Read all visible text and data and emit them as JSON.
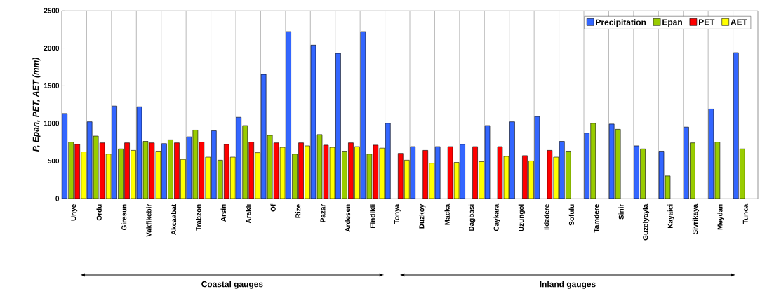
{
  "chart_data": {
    "type": "bar",
    "ylabel": "P, Epan, PET, AET (mm)",
    "categories": [
      "Unye",
      "Ordu",
      "Giresun",
      "Vakfikebir",
      "Akcaabat",
      "Trabzon",
      "Arsin",
      "Arakli",
      "Of",
      "Rize",
      "Pazar",
      "Ardesen",
      "Findikli",
      "Tonya",
      "Duzkoy",
      "Macka",
      "Dagbasi",
      "Caykara",
      "Uzungol",
      "Ikizdere",
      "Sofulu",
      "Tamdere",
      "Sinir",
      "Guzelyayla",
      "Kayaici",
      "Sivrikaya",
      "Meydan",
      "Tunca"
    ],
    "series": [
      {
        "name": "Precipitation",
        "color": "#3366ff",
        "values": [
          1130,
          1020,
          1230,
          1220,
          730,
          820,
          900,
          1080,
          1650,
          2220,
          2040,
          1930,
          2220,
          1000,
          690,
          690,
          720,
          970,
          1020,
          1090,
          760,
          870,
          990,
          700,
          630,
          950,
          1190,
          1940
        ]
      },
      {
        "name": "Epan",
        "color": "#99cc00",
        "values": [
          750,
          830,
          660,
          760,
          780,
          910,
          510,
          970,
          840,
          590,
          850,
          630,
          590,
          null,
          null,
          null,
          null,
          null,
          null,
          null,
          630,
          1000,
          920,
          660,
          300,
          740,
          750,
          660
        ]
      },
      {
        "name": "PET",
        "color": "#ff0000",
        "values": [
          720,
          740,
          740,
          740,
          740,
          750,
          720,
          750,
          740,
          740,
          710,
          740,
          710,
          600,
          640,
          690,
          690,
          690,
          570,
          640,
          null,
          null,
          null,
          null,
          null,
          null,
          null,
          null
        ]
      },
      {
        "name": "AET",
        "color": "#ffff00",
        "values": [
          620,
          590,
          640,
          630,
          520,
          550,
          550,
          610,
          680,
          700,
          680,
          690,
          670,
          510,
          470,
          480,
          490,
          560,
          500,
          550,
          null,
          null,
          null,
          null,
          null,
          null,
          null,
          null
        ]
      }
    ],
    "ylim": [
      0,
      2500
    ],
    "yticks": [
      0,
      500,
      1000,
      1500,
      2000,
      2500
    ],
    "grid": "x",
    "legend": "top right",
    "annotations": [
      "Coastal gauges",
      "Inland gauges"
    ]
  }
}
